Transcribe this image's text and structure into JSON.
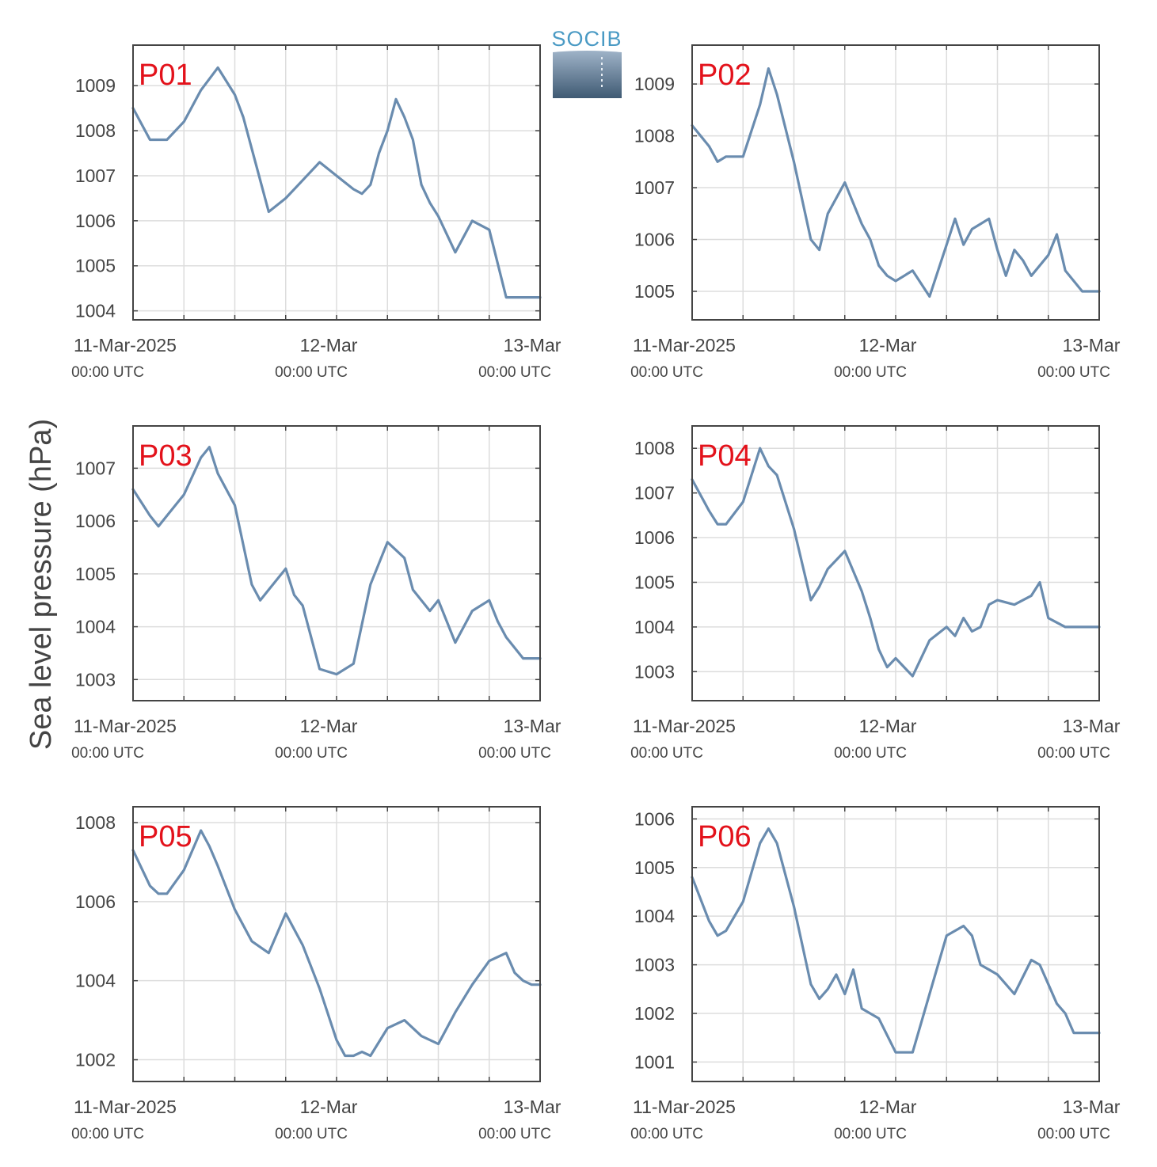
{
  "y_axis_label": "Sea level pressure (hPa)",
  "logo": {
    "text": "SOCIB"
  },
  "x_tick_labels": [
    {
      "main": "11-Mar-2025",
      "sub": "00:00 UTC"
    },
    {
      "main": "12-Mar",
      "sub": "00:00 UTC"
    },
    {
      "main": "13-Mar",
      "sub": "00:00 UTC"
    }
  ],
  "colors": {
    "line": "#6a8caf",
    "label": "#e3121b",
    "grid": "#dddddd",
    "axis": "#444444"
  },
  "chart_data": [
    {
      "type": "line",
      "label": "P01",
      "xlim": [
        "2025-03-11 00:00",
        "2025-03-13 00:00"
      ],
      "ylim": [
        1003.8,
        1009.9
      ],
      "yticks": [
        1004,
        1005,
        1006,
        1007,
        1008,
        1009
      ],
      "grid": true,
      "x_hours": [
        0,
        2,
        4,
        6,
        8,
        10,
        12,
        13,
        14,
        16,
        18,
        20,
        22,
        24,
        26,
        27,
        28,
        29,
        30,
        31,
        32,
        33,
        34,
        35,
        36,
        38,
        40,
        42,
        44,
        45,
        46,
        47,
        48
      ],
      "y": [
        1008.5,
        1007.8,
        1007.8,
        1008.2,
        1008.9,
        1009.4,
        1008.8,
        1008.3,
        1007.6,
        1006.2,
        1006.5,
        1006.9,
        1007.3,
        1007.0,
        1006.7,
        1006.6,
        1006.8,
        1007.5,
        1008.0,
        1008.7,
        1008.3,
        1007.8,
        1006.8,
        1006.4,
        1006.1,
        1005.3,
        1006.0,
        1005.8,
        1004.3,
        1004.3,
        1004.3,
        1004.3,
        1004.3
      ]
    },
    {
      "type": "line",
      "label": "P02",
      "xlim": [
        "2025-03-11 00:00",
        "2025-03-13 00:00"
      ],
      "ylim": [
        1004.45,
        1009.75
      ],
      "yticks": [
        1005,
        1006,
        1007,
        1008,
        1009
      ],
      "grid": true,
      "x_hours": [
        0,
        2,
        3,
        4,
        6,
        8,
        9,
        10,
        12,
        14,
        15,
        16,
        18,
        20,
        21,
        22,
        23,
        24,
        26,
        28,
        30,
        31,
        32,
        33,
        34,
        35,
        36,
        37,
        38,
        39,
        40,
        41,
        42,
        43,
        44,
        45,
        46,
        47,
        48
      ],
      "y": [
        1008.2,
        1007.8,
        1007.5,
        1007.6,
        1007.6,
        1008.6,
        1009.3,
        1008.8,
        1007.5,
        1006.0,
        1005.8,
        1006.5,
        1007.1,
        1006.3,
        1006.0,
        1005.5,
        1005.3,
        1005.2,
        1005.4,
        1004.9,
        1005.9,
        1006.4,
        1005.9,
        1006.2,
        1006.3,
        1006.4,
        1005.8,
        1005.3,
        1005.8,
        1005.6,
        1005.3,
        1005.5,
        1005.7,
        1006.1,
        1005.4,
        1005.2,
        1005.0,
        1005.0,
        1005.0
      ]
    },
    {
      "type": "line",
      "label": "P03",
      "xlim": [
        "2025-03-11 00:00",
        "2025-03-13 00:00"
      ],
      "ylim": [
        1002.6,
        1007.8
      ],
      "yticks": [
        1003,
        1004,
        1005,
        1006,
        1007
      ],
      "grid": true,
      "x_hours": [
        0,
        2,
        3,
        4,
        6,
        8,
        9,
        10,
        12,
        14,
        15,
        16,
        18,
        19,
        20,
        22,
        24,
        26,
        28,
        30,
        32,
        33,
        34,
        35,
        36,
        38,
        40,
        42,
        43,
        44,
        45,
        46,
        48
      ],
      "y": [
        1006.6,
        1006.1,
        1005.9,
        1006.1,
        1006.5,
        1007.2,
        1007.4,
        1006.9,
        1006.3,
        1004.8,
        1004.5,
        1004.7,
        1005.1,
        1004.6,
        1004.4,
        1003.2,
        1003.1,
        1003.3,
        1004.8,
        1005.6,
        1005.3,
        1004.7,
        1004.5,
        1004.3,
        1004.5,
        1003.7,
        1004.3,
        1004.5,
        1004.1,
        1003.8,
        1003.6,
        1003.4,
        1003.4
      ]
    },
    {
      "type": "line",
      "label": "P04",
      "xlim": [
        "2025-03-11 00:00",
        "2025-03-13 00:00"
      ],
      "ylim": [
        1002.35,
        1008.5
      ],
      "yticks": [
        1003,
        1004,
        1005,
        1006,
        1007,
        1008
      ],
      "grid": true,
      "x_hours": [
        0,
        2,
        3,
        4,
        6,
        8,
        9,
        10,
        12,
        14,
        15,
        16,
        18,
        20,
        21,
        22,
        23,
        24,
        26,
        27,
        28,
        30,
        31,
        32,
        33,
        34,
        35,
        36,
        38,
        40,
        41,
        42,
        43,
        44,
        45,
        46,
        47,
        48
      ],
      "y": [
        1007.3,
        1006.6,
        1006.3,
        1006.3,
        1006.8,
        1008.0,
        1007.6,
        1007.4,
        1006.2,
        1004.6,
        1004.9,
        1005.3,
        1005.7,
        1004.8,
        1004.2,
        1003.5,
        1003.1,
        1003.3,
        1002.9,
        1003.3,
        1003.7,
        1004.0,
        1003.8,
        1004.2,
        1003.9,
        1004.0,
        1004.5,
        1004.6,
        1004.5,
        1004.7,
        1005.0,
        1004.2,
        1004.1,
        1004.0,
        1004.0,
        1004.0,
        1004.0,
        1004.0
      ]
    },
    {
      "type": "line",
      "label": "P05",
      "xlim": [
        "2025-03-11 00:00",
        "2025-03-13 00:00"
      ],
      "ylim": [
        1001.45,
        1008.4
      ],
      "yticks": [
        1002,
        1004,
        1006,
        1008
      ],
      "grid": true,
      "x_hours": [
        0,
        2,
        3,
        4,
        6,
        8,
        9,
        10,
        12,
        14,
        16,
        18,
        20,
        22,
        24,
        25,
        26,
        27,
        28,
        30,
        32,
        34,
        35,
        36,
        38,
        40,
        42,
        44,
        45,
        46,
        47,
        48
      ],
      "y": [
        1007.3,
        1006.4,
        1006.2,
        1006.2,
        1006.8,
        1007.8,
        1007.4,
        1006.9,
        1005.8,
        1005.0,
        1004.7,
        1005.7,
        1004.9,
        1003.8,
        1002.5,
        1002.1,
        1002.1,
        1002.2,
        1002.1,
        1002.8,
        1003.0,
        1002.6,
        1002.5,
        1002.4,
        1003.2,
        1003.9,
        1004.5,
        1004.7,
        1004.2,
        1004.0,
        1003.9,
        1003.9
      ]
    },
    {
      "type": "line",
      "label": "P06",
      "xlim": [
        "2025-03-11 00:00",
        "2025-03-13 00:00"
      ],
      "ylim": [
        1000.6,
        1006.25
      ],
      "yticks": [
        1001,
        1002,
        1003,
        1004,
        1005,
        1006
      ],
      "grid": true,
      "x_hours": [
        0,
        2,
        3,
        4,
        6,
        8,
        9,
        10,
        12,
        14,
        15,
        16,
        17,
        18,
        19,
        20,
        22,
        24,
        26,
        28,
        30,
        31,
        32,
        33,
        34,
        35,
        36,
        38,
        40,
        41,
        42,
        43,
        44,
        45,
        46,
        47,
        48
      ],
      "y": [
        1004.8,
        1003.9,
        1003.6,
        1003.7,
        1004.3,
        1005.5,
        1005.8,
        1005.5,
        1004.2,
        1002.6,
        1002.3,
        1002.5,
        1002.8,
        1002.4,
        1002.9,
        1002.1,
        1001.9,
        1001.2,
        1001.2,
        1002.4,
        1003.6,
        1003.7,
        1003.8,
        1003.6,
        1003.0,
        1002.9,
        1002.8,
        1002.4,
        1003.1,
        1003.0,
        1002.6,
        1002.2,
        1002.0,
        1001.6,
        1001.6,
        1001.6,
        1001.6
      ]
    }
  ]
}
